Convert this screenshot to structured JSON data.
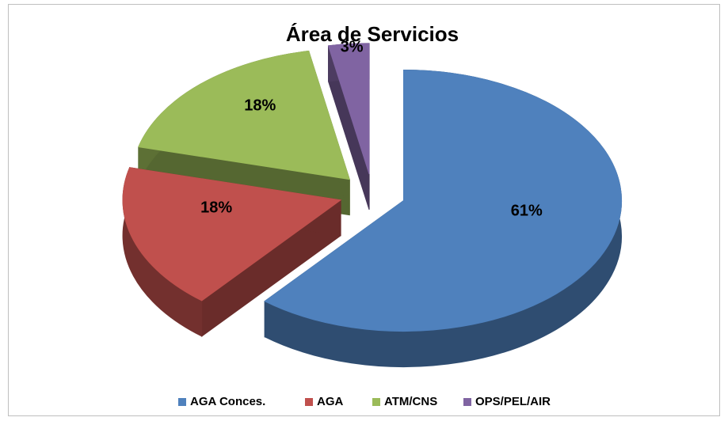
{
  "chart_data": {
    "type": "pie",
    "title": "Área de Servicios",
    "categories": [
      "AGA Conces.",
      "AGA",
      "ATM/CNS",
      "OPS/PEL/AIR"
    ],
    "values": [
      61,
      18,
      18,
      3
    ],
    "value_labels": [
      "61%",
      "18%",
      "18%",
      "3%"
    ],
    "colors": [
      "#4f81bd",
      "#c0504d",
      "#9bbb59",
      "#8064a2"
    ],
    "legend": "bottom"
  }
}
